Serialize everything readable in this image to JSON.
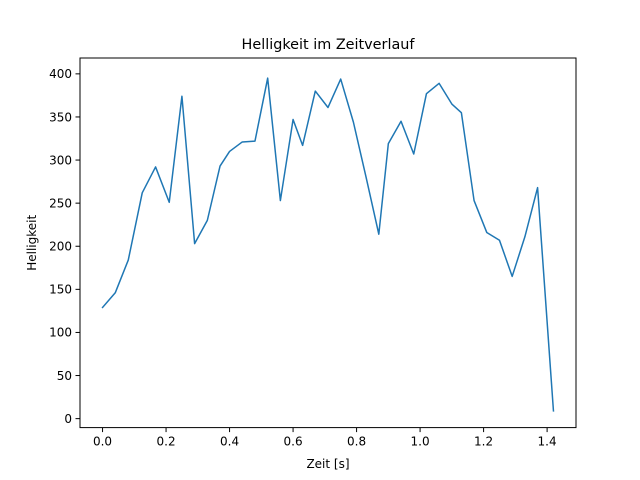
{
  "chart_data": {
    "type": "line",
    "title": "Helligkeit im Zeitverlauf",
    "xlabel": "Zeit [s]",
    "ylabel": "Helligkeit",
    "xlim": [
      -0.071,
      1.491
    ],
    "ylim": [
      -10.4,
      418.4
    ],
    "xticks": [
      0.0,
      0.2,
      0.4,
      0.6,
      0.8,
      1.0,
      1.2,
      1.4
    ],
    "xtick_labels": [
      "0.0",
      "0.2",
      "0.4",
      "0.6",
      "0.8",
      "1.0",
      "1.2",
      "1.4"
    ],
    "yticks": [
      0,
      50,
      100,
      150,
      200,
      250,
      300,
      350,
      400
    ],
    "ytick_labels": [
      "0",
      "50",
      "100",
      "150",
      "200",
      "250",
      "300",
      "350",
      "400"
    ],
    "grid": false,
    "line_color": "#1f77b4",
    "series": [
      {
        "x": [
          0.0,
          0.04,
          0.081,
          0.125,
          0.167,
          0.21,
          0.25,
          0.29,
          0.33,
          0.37,
          0.4,
          0.44,
          0.48,
          0.52,
          0.56,
          0.6,
          0.63,
          0.67,
          0.71,
          0.75,
          0.79,
          0.83,
          0.87,
          0.9,
          0.94,
          0.98,
          1.02,
          1.06,
          1.1,
          1.13,
          1.17,
          1.21,
          1.25,
          1.29,
          1.33,
          1.37,
          1.42
        ],
        "y": [
          129,
          146,
          184,
          262,
          292,
          251,
          374,
          203,
          230,
          293,
          310,
          321,
          322,
          395,
          253,
          347,
          317,
          380,
          361,
          394,
          344,
          280,
          214,
          319,
          345,
          307,
          377,
          389,
          365,
          355,
          253,
          216,
          207,
          165,
          211,
          268,
          9
        ]
      }
    ]
  }
}
